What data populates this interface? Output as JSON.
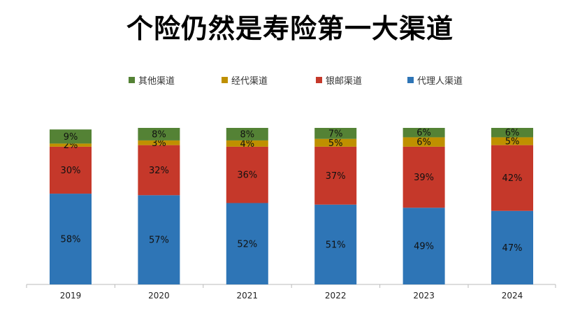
{
  "chart_data": {
    "type": "bar",
    "stacked": true,
    "title": "个险仍然是寿险第一大渠道",
    "categories": [
      "2019",
      "2020",
      "2021",
      "2022",
      "2023",
      "2024"
    ],
    "series": [
      {
        "name": "代理人渠道",
        "color": "#2E75B6",
        "values": [
          58,
          57,
          52,
          51,
          49,
          47
        ]
      },
      {
        "name": "银邮渠道",
        "color": "#C5382A",
        "values": [
          30,
          32,
          36,
          37,
          39,
          42
        ]
      },
      {
        "name": "经代渠道",
        "color": "#BF9000",
        "values": [
          2,
          3,
          4,
          5,
          6,
          5
        ]
      },
      {
        "name": "其他渠道",
        "color": "#548235",
        "values": [
          9,
          8,
          8,
          7,
          6,
          6
        ]
      }
    ],
    "legend_order": [
      "其他渠道",
      "经代渠道",
      "银邮渠道",
      "代理人渠道"
    ],
    "value_format": "%",
    "ylim": [
      0,
      100
    ],
    "grid": false,
    "legend": "top"
  }
}
